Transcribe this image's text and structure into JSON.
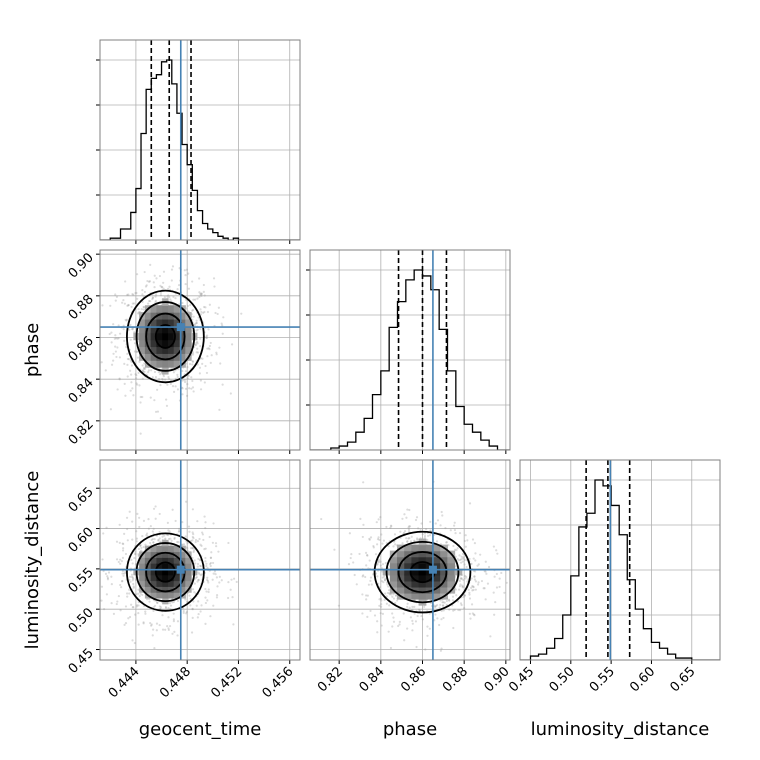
{
  "chart_data": {
    "type": "corner",
    "parameters": [
      "geocent_time",
      "phase",
      "luminosity_distance"
    ],
    "truths": {
      "geocent_time": 0.4475,
      "phase": 0.865,
      "luminosity_distance": 0.549
    },
    "quantiles": {
      "geocent_time": [
        0.4452,
        0.4466,
        0.4483
      ],
      "phase": [
        0.8485,
        0.86,
        0.8715
      ],
      "luminosity_distance": [
        0.519,
        0.546,
        0.573
      ]
    },
    "truth_color": "#4682b4",
    "grid": true,
    "ranges": {
      "geocent_time": [
        0.4412,
        0.4568
      ],
      "phase": [
        0.806,
        0.902
      ],
      "luminosity_distance": [
        0.437,
        0.685
      ]
    },
    "ticks": {
      "geocent_time": {
        "values": [
          0.444,
          0.448,
          0.452,
          0.456
        ],
        "labels": [
          "0.444",
          "0.448",
          "0.452",
          "0.456"
        ]
      },
      "phase": {
        "values": [
          0.82,
          0.84,
          0.86,
          0.88,
          0.9
        ],
        "labels": [
          "0.82",
          "0.84",
          "0.86",
          "0.88",
          "0.90"
        ]
      },
      "luminosity_distance": {
        "values": [
          0.45,
          0.5,
          0.55,
          0.6,
          0.65
        ],
        "labels": [
          "0.45",
          "0.50",
          "0.55",
          "0.60",
          "0.65"
        ]
      }
    },
    "histograms": {
      "geocent_time": {
        "edges": [
          0.4412,
          0.442,
          0.4428,
          0.4436,
          0.444,
          0.4444,
          0.4448,
          0.4452,
          0.4456,
          0.446,
          0.4464,
          0.4468,
          0.4472,
          0.4476,
          0.448,
          0.4484,
          0.4488,
          0.4492,
          0.4496,
          0.45,
          0.4504,
          0.4508,
          0.4512,
          0.4516,
          0.452,
          0.4528,
          0.4568
        ],
        "counts": [
          0,
          1,
          6,
          15,
          28,
          58,
          82,
          88,
          90,
          97,
          98,
          85,
          69,
          52,
          41,
          27,
          16,
          9,
          6,
          4,
          2,
          1,
          0,
          1,
          0,
          0
        ]
      },
      "phase": {
        "edges": [
          0.806,
          0.816,
          0.82,
          0.824,
          0.828,
          0.832,
          0.836,
          0.84,
          0.844,
          0.848,
          0.852,
          0.856,
          0.86,
          0.864,
          0.868,
          0.872,
          0.876,
          0.88,
          0.884,
          0.888,
          0.892,
          0.896,
          0.902
        ],
        "counts": [
          0,
          1,
          2,
          4,
          9,
          16,
          28,
          40,
          62,
          75,
          86,
          91,
          88,
          81,
          61,
          40,
          22,
          13,
          9,
          5,
          2,
          0
        ]
      },
      "luminosity_distance": {
        "edges": [
          0.437,
          0.45,
          0.46,
          0.47,
          0.48,
          0.49,
          0.5,
          0.51,
          0.52,
          0.53,
          0.54,
          0.55,
          0.56,
          0.57,
          0.58,
          0.59,
          0.6,
          0.61,
          0.62,
          0.63,
          0.64,
          0.65,
          0.685
        ],
        "counts": [
          0,
          2,
          3,
          6,
          11,
          23,
          43,
          68,
          75,
          92,
          89,
          79,
          64,
          41,
          26,
          16,
          9,
          6,
          3,
          1,
          1,
          0
        ]
      }
    },
    "pairs": [
      {
        "x": "geocent_time",
        "y": "phase",
        "centroid": [
          0.4463,
          0.8605
        ],
        "spread": [
          0.0015,
          0.011
        ],
        "contour_scales": [
          0.5,
          1.0,
          1.5,
          2.0
        ]
      },
      {
        "x": "geocent_time",
        "y": "luminosity_distance",
        "centroid": [
          0.4463,
          0.546
        ],
        "spread": [
          0.0015,
          0.024
        ],
        "contour_scales": [
          0.5,
          1.0,
          1.5,
          2.0
        ]
      },
      {
        "x": "phase",
        "y": "luminosity_distance",
        "centroid": [
          0.86,
          0.546
        ],
        "spread": [
          0.0115,
          0.025
        ],
        "contour_scales": [
          0.5,
          1.0,
          1.5,
          2.0
        ]
      }
    ],
    "xlabels": [
      "geocent_time",
      "phase",
      "luminosity_distance"
    ],
    "ylabels": [
      "",
      "phase",
      "luminosity_distance"
    ]
  }
}
